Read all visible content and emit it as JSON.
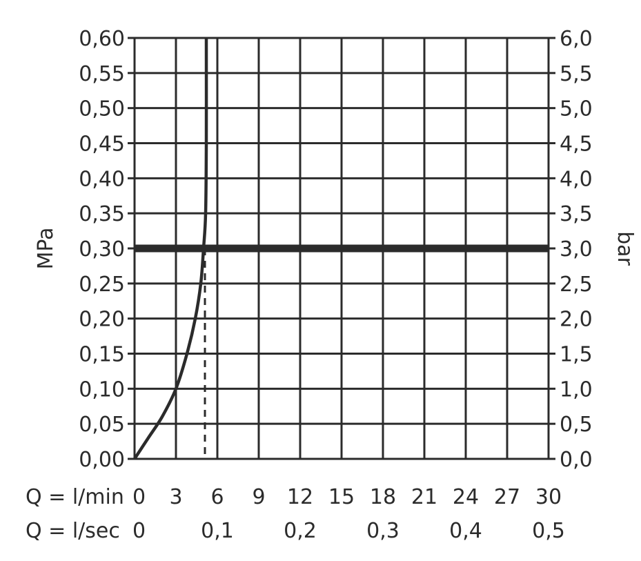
{
  "chart_data": {
    "type": "line",
    "title": "",
    "ylabel_left": "MPa",
    "ylabel_right": "bar",
    "xlim": [
      0,
      30
    ],
    "ylim": [
      0,
      0.6
    ],
    "grid": true,
    "left_ticks": [
      "0,00",
      "0,05",
      "0,10",
      "0,15",
      "0,20",
      "0,25",
      "0,30",
      "0,35",
      "0,40",
      "0,45",
      "0,50",
      "0,55",
      "0,60"
    ],
    "right_ticks": [
      "0,0",
      "0,5",
      "1,0",
      "1,5",
      "2,0",
      "2,5",
      "3,0",
      "3,5",
      "4,0",
      "4,5",
      "5,0",
      "5,5",
      "6,0"
    ],
    "x_rows": [
      {
        "label": "Q = l/min",
        "ticks": [
          {
            "x": 0,
            "text": "0"
          },
          {
            "x": 3,
            "text": "3"
          },
          {
            "x": 6,
            "text": "6"
          },
          {
            "x": 9,
            "text": "9"
          },
          {
            "x": 12,
            "text": "12"
          },
          {
            "x": 15,
            "text": "15"
          },
          {
            "x": 18,
            "text": "18"
          },
          {
            "x": 21,
            "text": "21"
          },
          {
            "x": 24,
            "text": "24"
          },
          {
            "x": 27,
            "text": "27"
          },
          {
            "x": 30,
            "text": "30"
          }
        ]
      },
      {
        "label": "Q = l/sec",
        "ticks": [
          {
            "x": 0,
            "text": "0"
          },
          {
            "x": 6,
            "text": "0,1"
          },
          {
            "x": 12,
            "text": "0,2"
          },
          {
            "x": 18,
            "text": "0,3"
          },
          {
            "x": 24,
            "text": "0,4"
          },
          {
            "x": 30,
            "text": "0,5"
          }
        ]
      }
    ],
    "series": [
      {
        "x": [
          0,
          1,
          2,
          3,
          3.8,
          4.4,
          4.8,
          5.0,
          5.15,
          5.2,
          5.2
        ],
        "y": [
          0,
          0.03,
          0.06,
          0.1,
          0.15,
          0.2,
          0.25,
          0.3,
          0.35,
          0.45,
          0.6
        ]
      }
    ],
    "reference_line_y": 0.3,
    "reference_drop_x": 5.1
  }
}
